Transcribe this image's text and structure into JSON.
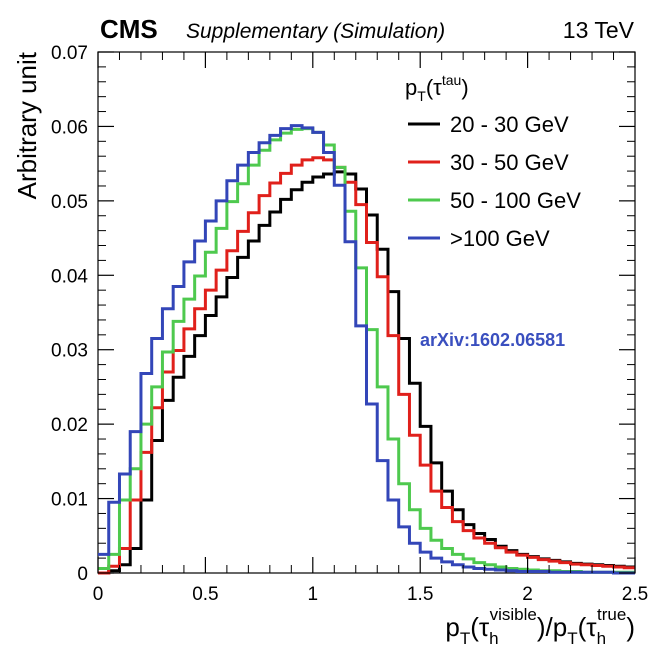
{
  "header": {
    "experiment": "CMS",
    "subtitle": "Supplementary (Simulation)",
    "energy": "13 TeV"
  },
  "annotation": {
    "text": "arXiv:1602.06581",
    "color": "#3a4fbf"
  },
  "chart_data": {
    "type": "line",
    "style": "step-histogram",
    "title": "",
    "xlabel": {
      "base": "p",
      "sub_T1": "T",
      "tau_num": "τ",
      "tau_num_sub": "h",
      "tau_num_sup": "visible",
      "sep": ")/p",
      "sub_T2": "T",
      "tau_den": "τ",
      "tau_den_sub": "h",
      "tau_den_sup": "true",
      "close": ")",
      "open": "("
    },
    "ylabel": "Arbitrary unit",
    "xlim": [
      0,
      2.5
    ],
    "ylim": [
      0,
      0.07
    ],
    "x_ticks": [
      0,
      0.5,
      1,
      1.5,
      2,
      2.5
    ],
    "x_tick_labels": [
      "0",
      "0.5",
      "1",
      "1.5",
      "2",
      "2.5"
    ],
    "y_ticks": [
      0,
      0.01,
      0.02,
      0.03,
      0.04,
      0.05,
      0.06,
      0.07
    ],
    "y_tick_labels": [
      "0",
      "0.01",
      "0.02",
      "0.03",
      "0.04",
      "0.05",
      "0.06",
      "0.07"
    ],
    "grid": false,
    "legend": {
      "placement": "top-right",
      "title": {
        "base": "p",
        "sub": "T",
        "open": "(",
        "tau": "τ",
        "sup": "tau",
        "close": ")"
      }
    },
    "bin_width": 0.05,
    "x_start": 0,
    "series": [
      {
        "name": "20 - 30 GeV",
        "color": "#000000",
        "values": [
          0.0,
          0.0003,
          0.0011,
          0.0033,
          0.0098,
          0.0178,
          0.0232,
          0.0263,
          0.0291,
          0.0319,
          0.0346,
          0.0371,
          0.0397,
          0.0424,
          0.0446,
          0.0467,
          0.0485,
          0.0502,
          0.0515,
          0.0525,
          0.0532,
          0.0536,
          0.0539,
          0.0536,
          0.0516,
          0.0481,
          0.0435,
          0.0378,
          0.0315,
          0.0255,
          0.0197,
          0.0148,
          0.011,
          0.0085,
          0.0065,
          0.0053,
          0.0045,
          0.0036,
          0.003,
          0.0025,
          0.0022,
          0.0019,
          0.0017,
          0.0015,
          0.0013,
          0.0012,
          0.0011,
          0.001,
          0.0009,
          0.0008
        ]
      },
      {
        "name": "30 - 50 GeV",
        "color": "#e0201b",
        "values": [
          0.0,
          0.0009,
          0.0033,
          0.0098,
          0.0162,
          0.0222,
          0.027,
          0.0299,
          0.0328,
          0.0355,
          0.038,
          0.0407,
          0.0433,
          0.0459,
          0.0484,
          0.0507,
          0.0524,
          0.0537,
          0.0548,
          0.0555,
          0.0558,
          0.0555,
          0.0545,
          0.0525,
          0.0495,
          0.0444,
          0.0398,
          0.0319,
          0.024,
          0.0185,
          0.0145,
          0.011,
          0.0088,
          0.0069,
          0.0057,
          0.0047,
          0.004,
          0.0034,
          0.0028,
          0.0024,
          0.0021,
          0.0018,
          0.0016,
          0.0014,
          0.0012,
          0.0011,
          0.001,
          0.0009,
          0.0008,
          0.0007
        ]
      },
      {
        "name": "50 - 100 GeV",
        "color": "#4ec94e",
        "values": [
          0.0006,
          0.0025,
          0.0098,
          0.014,
          0.02,
          0.025,
          0.0297,
          0.0338,
          0.0368,
          0.0399,
          0.0431,
          0.0463,
          0.0499,
          0.0523,
          0.0548,
          0.0568,
          0.0582,
          0.0591,
          0.0596,
          0.0597,
          0.0592,
          0.0575,
          0.0545,
          0.0486,
          0.041,
          0.0327,
          0.025,
          0.018,
          0.012,
          0.0085,
          0.006,
          0.0044,
          0.0033,
          0.0025,
          0.0019,
          0.0014,
          0.0011,
          0.0008,
          0.0006,
          0.0005,
          0.0004,
          0.0003,
          0.0003,
          0.0002,
          0.0002,
          0.0001,
          0.0001,
          0.0001,
          0.0001,
          0.0001
        ]
      },
      {
        "name": ">100 GeV",
        "color": "#3346b8",
        "values": [
          0.0025,
          0.0095,
          0.0133,
          0.019,
          0.0268,
          0.0315,
          0.0355,
          0.0385,
          0.0418,
          0.0446,
          0.0473,
          0.05,
          0.0527,
          0.0548,
          0.0565,
          0.0578,
          0.0588,
          0.0597,
          0.0601,
          0.0598,
          0.0592,
          0.0565,
          0.0521,
          0.0445,
          0.0332,
          0.0227,
          0.0151,
          0.0098,
          0.0062,
          0.004,
          0.0028,
          0.002,
          0.0015,
          0.0011,
          0.0008,
          0.0006,
          0.0005,
          0.0004,
          0.0003,
          0.0002,
          0.0002,
          0.0002,
          0.0001,
          0.0001,
          0.0001,
          0.0001,
          0.0001,
          0.0001,
          0.0,
          0.0
        ]
      }
    ]
  }
}
